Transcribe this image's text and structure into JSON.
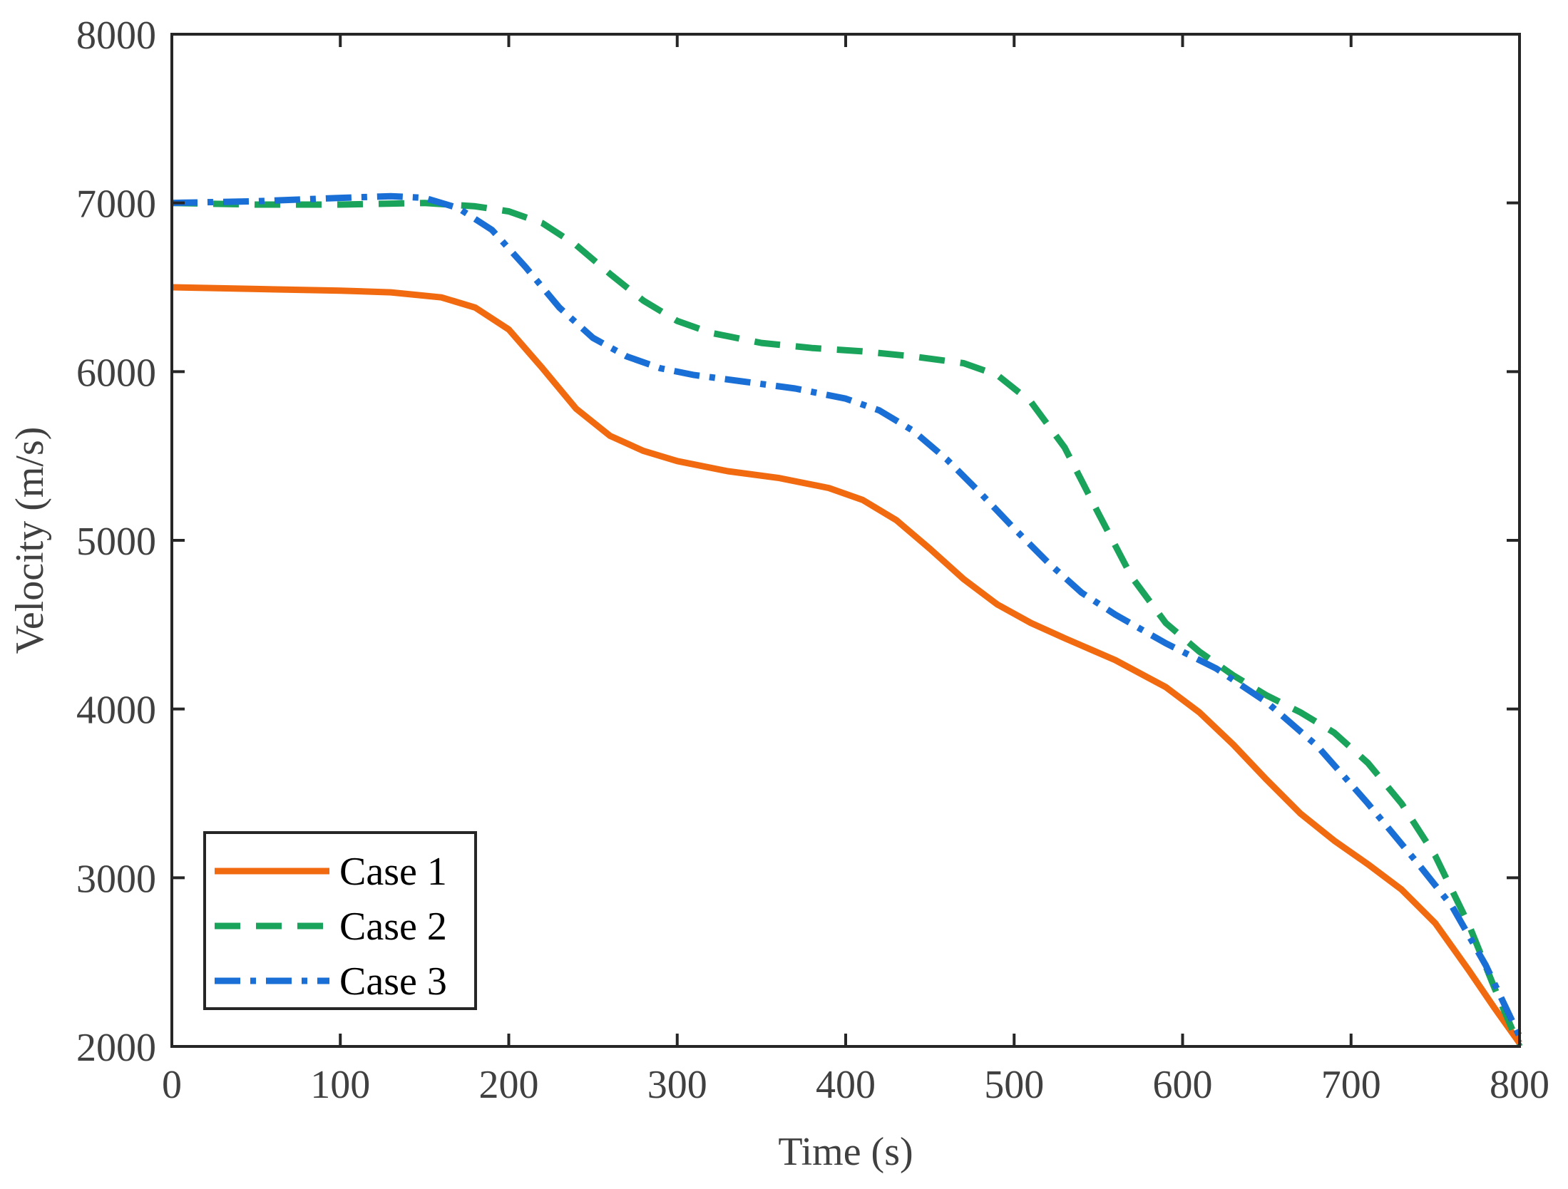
{
  "chart_data": {
    "type": "line",
    "title": "",
    "xlabel": "Time (s)",
    "ylabel": "Velocity (m/s)",
    "xlim": [
      0,
      800
    ],
    "ylim": [
      2000,
      8000
    ],
    "xticks": [
      0,
      100,
      200,
      300,
      400,
      500,
      600,
      700,
      800
    ],
    "yticks": [
      2000,
      3000,
      4000,
      5000,
      6000,
      7000,
      8000
    ],
    "grid": false,
    "legend_position": "bottom-left",
    "series": [
      {
        "name": "Case 1",
        "color": "#f26a10",
        "style": "solid",
        "x": [
          0,
          50,
          100,
          130,
          160,
          180,
          200,
          220,
          240,
          260,
          280,
          300,
          330,
          360,
          390,
          410,
          430,
          450,
          470,
          490,
          510,
          530,
          560,
          590,
          610,
          630,
          650,
          670,
          690,
          710,
          730,
          750,
          770,
          785,
          800
        ],
        "y": [
          6500,
          6490,
          6480,
          6470,
          6440,
          6380,
          6250,
          6020,
          5780,
          5620,
          5530,
          5470,
          5410,
          5370,
          5310,
          5240,
          5120,
          4950,
          4770,
          4620,
          4510,
          4420,
          4290,
          4130,
          3980,
          3790,
          3580,
          3380,
          3220,
          3080,
          2930,
          2730,
          2450,
          2230,
          2020
        ]
      },
      {
        "name": "Case 2",
        "color": "#1aa35b",
        "style": "dashed",
        "x": [
          0,
          50,
          100,
          150,
          180,
          200,
          220,
          240,
          260,
          280,
          300,
          320,
          350,
          380,
          410,
          440,
          470,
          490,
          510,
          530,
          550,
          570,
          590,
          610,
          630,
          650,
          670,
          690,
          710,
          730,
          750,
          770,
          785,
          800
        ],
        "y": [
          7000,
          6990,
          6990,
          7000,
          6980,
          6950,
          6880,
          6750,
          6580,
          6420,
          6300,
          6230,
          6170,
          6140,
          6120,
          6090,
          6050,
          5980,
          5820,
          5550,
          5160,
          4780,
          4510,
          4340,
          4200,
          4080,
          3980,
          3860,
          3680,
          3440,
          3130,
          2720,
          2350,
          2000
        ]
      },
      {
        "name": "Case 3",
        "color": "#1a6fd6",
        "style": "dashdot",
        "x": [
          0,
          50,
          100,
          130,
          150,
          170,
          190,
          210,
          230,
          250,
          270,
          290,
          310,
          340,
          370,
          400,
          420,
          440,
          460,
          480,
          500,
          520,
          540,
          560,
          590,
          620,
          650,
          680,
          710,
          740,
          760,
          780,
          800
        ],
        "y": [
          7000,
          7010,
          7030,
          7040,
          7030,
          6970,
          6840,
          6620,
          6380,
          6200,
          6090,
          6020,
          5980,
          5940,
          5900,
          5840,
          5770,
          5650,
          5480,
          5280,
          5070,
          4870,
          4690,
          4560,
          4390,
          4240,
          4040,
          3780,
          3440,
          3080,
          2830,
          2480,
          2060
        ]
      }
    ]
  }
}
